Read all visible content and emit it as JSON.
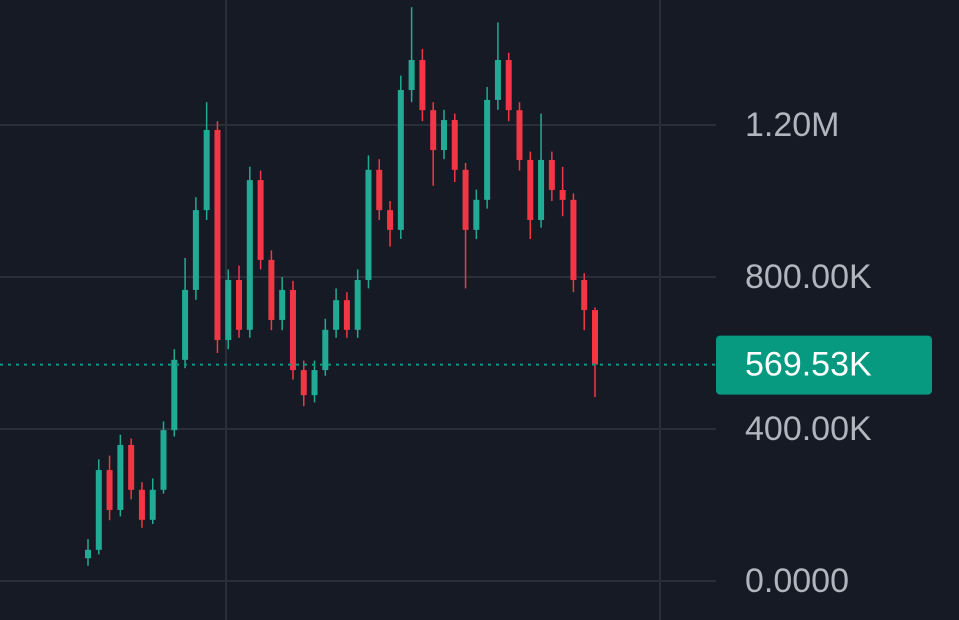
{
  "chart_data": {
    "type": "candlestick",
    "up_color": "#22ab94",
    "down_color": "#f23645",
    "grid": true,
    "ylim": [
      -102600,
      1528900
    ],
    "yticks": [
      {
        "value": 0,
        "label": "0.0000"
      },
      {
        "value": 400000,
        "label": "400.00K"
      },
      {
        "value": 800000,
        "label": "800.00K"
      },
      {
        "value": 1200000,
        "label": "1.20M"
      }
    ],
    "last_price": {
      "value": 569530,
      "label": "569.53K",
      "color": "#089981"
    },
    "open": [
      60000,
      82000,
      292000,
      187000,
      358000,
      240000,
      161000,
      240000,
      397000,
      582000,
      766000,
      976000,
      1187000,
      634000,
      792000,
      661000,
      1055000,
      845000,
      687000,
      766000,
      555000,
      489000,
      555000,
      661000,
      739000,
      661000,
      792000,
      1082000,
      976000,
      924000,
      1292000,
      1371000,
      1239000,
      1134000,
      1213000,
      1082000,
      924000,
      1003000,
      1266000,
      1371000,
      1239000,
      1108000,
      950000,
      1108000,
      1029000,
      1003000,
      792000,
      713000
    ],
    "high": [
      110000,
      320000,
      330000,
      385000,
      375000,
      260000,
      270000,
      420000,
      610000,
      850000,
      1010000,
      1260000,
      1210000,
      820000,
      830000,
      1090000,
      1080000,
      870000,
      800000,
      790000,
      580000,
      580000,
      690000,
      770000,
      760000,
      820000,
      1120000,
      1110000,
      1000000,
      1330000,
      1510000,
      1400000,
      1260000,
      1240000,
      1230000,
      1100000,
      1030000,
      1300000,
      1470000,
      1390000,
      1260000,
      1130000,
      1230000,
      1130000,
      1090000,
      1020000,
      810000,
      720000
    ],
    "low": [
      40000,
      70000,
      160000,
      170000,
      215000,
      140000,
      150000,
      230000,
      380000,
      560000,
      740000,
      950000,
      600000,
      610000,
      640000,
      640000,
      820000,
      660000,
      660000,
      530000,
      460000,
      470000,
      540000,
      640000,
      640000,
      640000,
      770000,
      950000,
      880000,
      900000,
      1260000,
      1210000,
      1040000,
      1110000,
      1050000,
      770000,
      900000,
      980000,
      1240000,
      1210000,
      1080000,
      900000,
      930000,
      1000000,
      960000,
      760000,
      660000,
      484000
    ],
    "close": [
      82000,
      292000,
      187000,
      358000,
      240000,
      161000,
      240000,
      397000,
      582000,
      766000,
      976000,
      1187000,
      634000,
      792000,
      661000,
      1055000,
      845000,
      687000,
      766000,
      555000,
      489000,
      555000,
      661000,
      739000,
      661000,
      792000,
      1082000,
      976000,
      924000,
      1292000,
      1371000,
      1239000,
      1134000,
      1213000,
      1082000,
      924000,
      1003000,
      1266000,
      1371000,
      1239000,
      1108000,
      950000,
      1108000,
      1029000,
      1003000,
      792000,
      713000,
      569530
    ]
  }
}
